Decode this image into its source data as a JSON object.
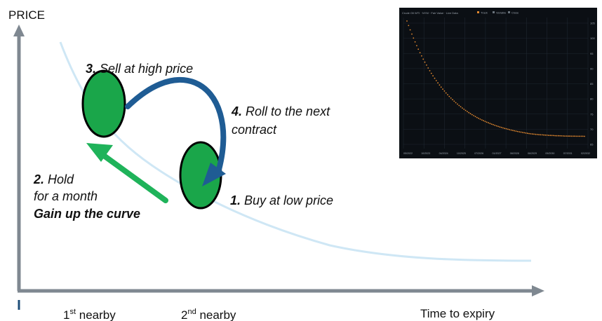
{
  "axes": {
    "y_label": "PRICE",
    "x_label": "Time to expiry",
    "tick_1": {
      "num": "1",
      "sup": "st",
      "word": " nearby"
    },
    "tick_2": {
      "num": "2",
      "sup": "nd",
      "word": " nearby"
    }
  },
  "steps": {
    "step1": {
      "num": "1.",
      "text": " Buy at low price"
    },
    "step2": {
      "num": "2.",
      "line1": " Hold",
      "line2": "for a month",
      "line3": "Gain up the curve"
    },
    "step3": {
      "num": "3.",
      "text": " Sell at high price"
    },
    "step4": {
      "num": "4.",
      "line1": " Roll to the next",
      "line2": "contract"
    }
  },
  "inset": {
    "header": "Crude Oil WTI · NYM · Fair Value · Live Data",
    "legend": [
      "Track",
      "Variable",
      "Close"
    ],
    "x_ticks": [
      "05/2022",
      "10/2023",
      "04/2024",
      "10/2025",
      "07/2026",
      "01/2027",
      "08/2028",
      "06/2029",
      "09/2030",
      "07/2031",
      "02/2032"
    ],
    "y_ticks": [
      "105",
      "100",
      "95",
      "90",
      "85",
      "80",
      "75",
      "70",
      "65"
    ]
  },
  "colors": {
    "axis": "#7f8891",
    "curve": "#cfe7f5",
    "ellipse_fill": "#1aa64a",
    "roll_arrow": "#1f5c94",
    "hold_arrow": "#1fb35a",
    "inset_line": "#e0872f"
  }
}
